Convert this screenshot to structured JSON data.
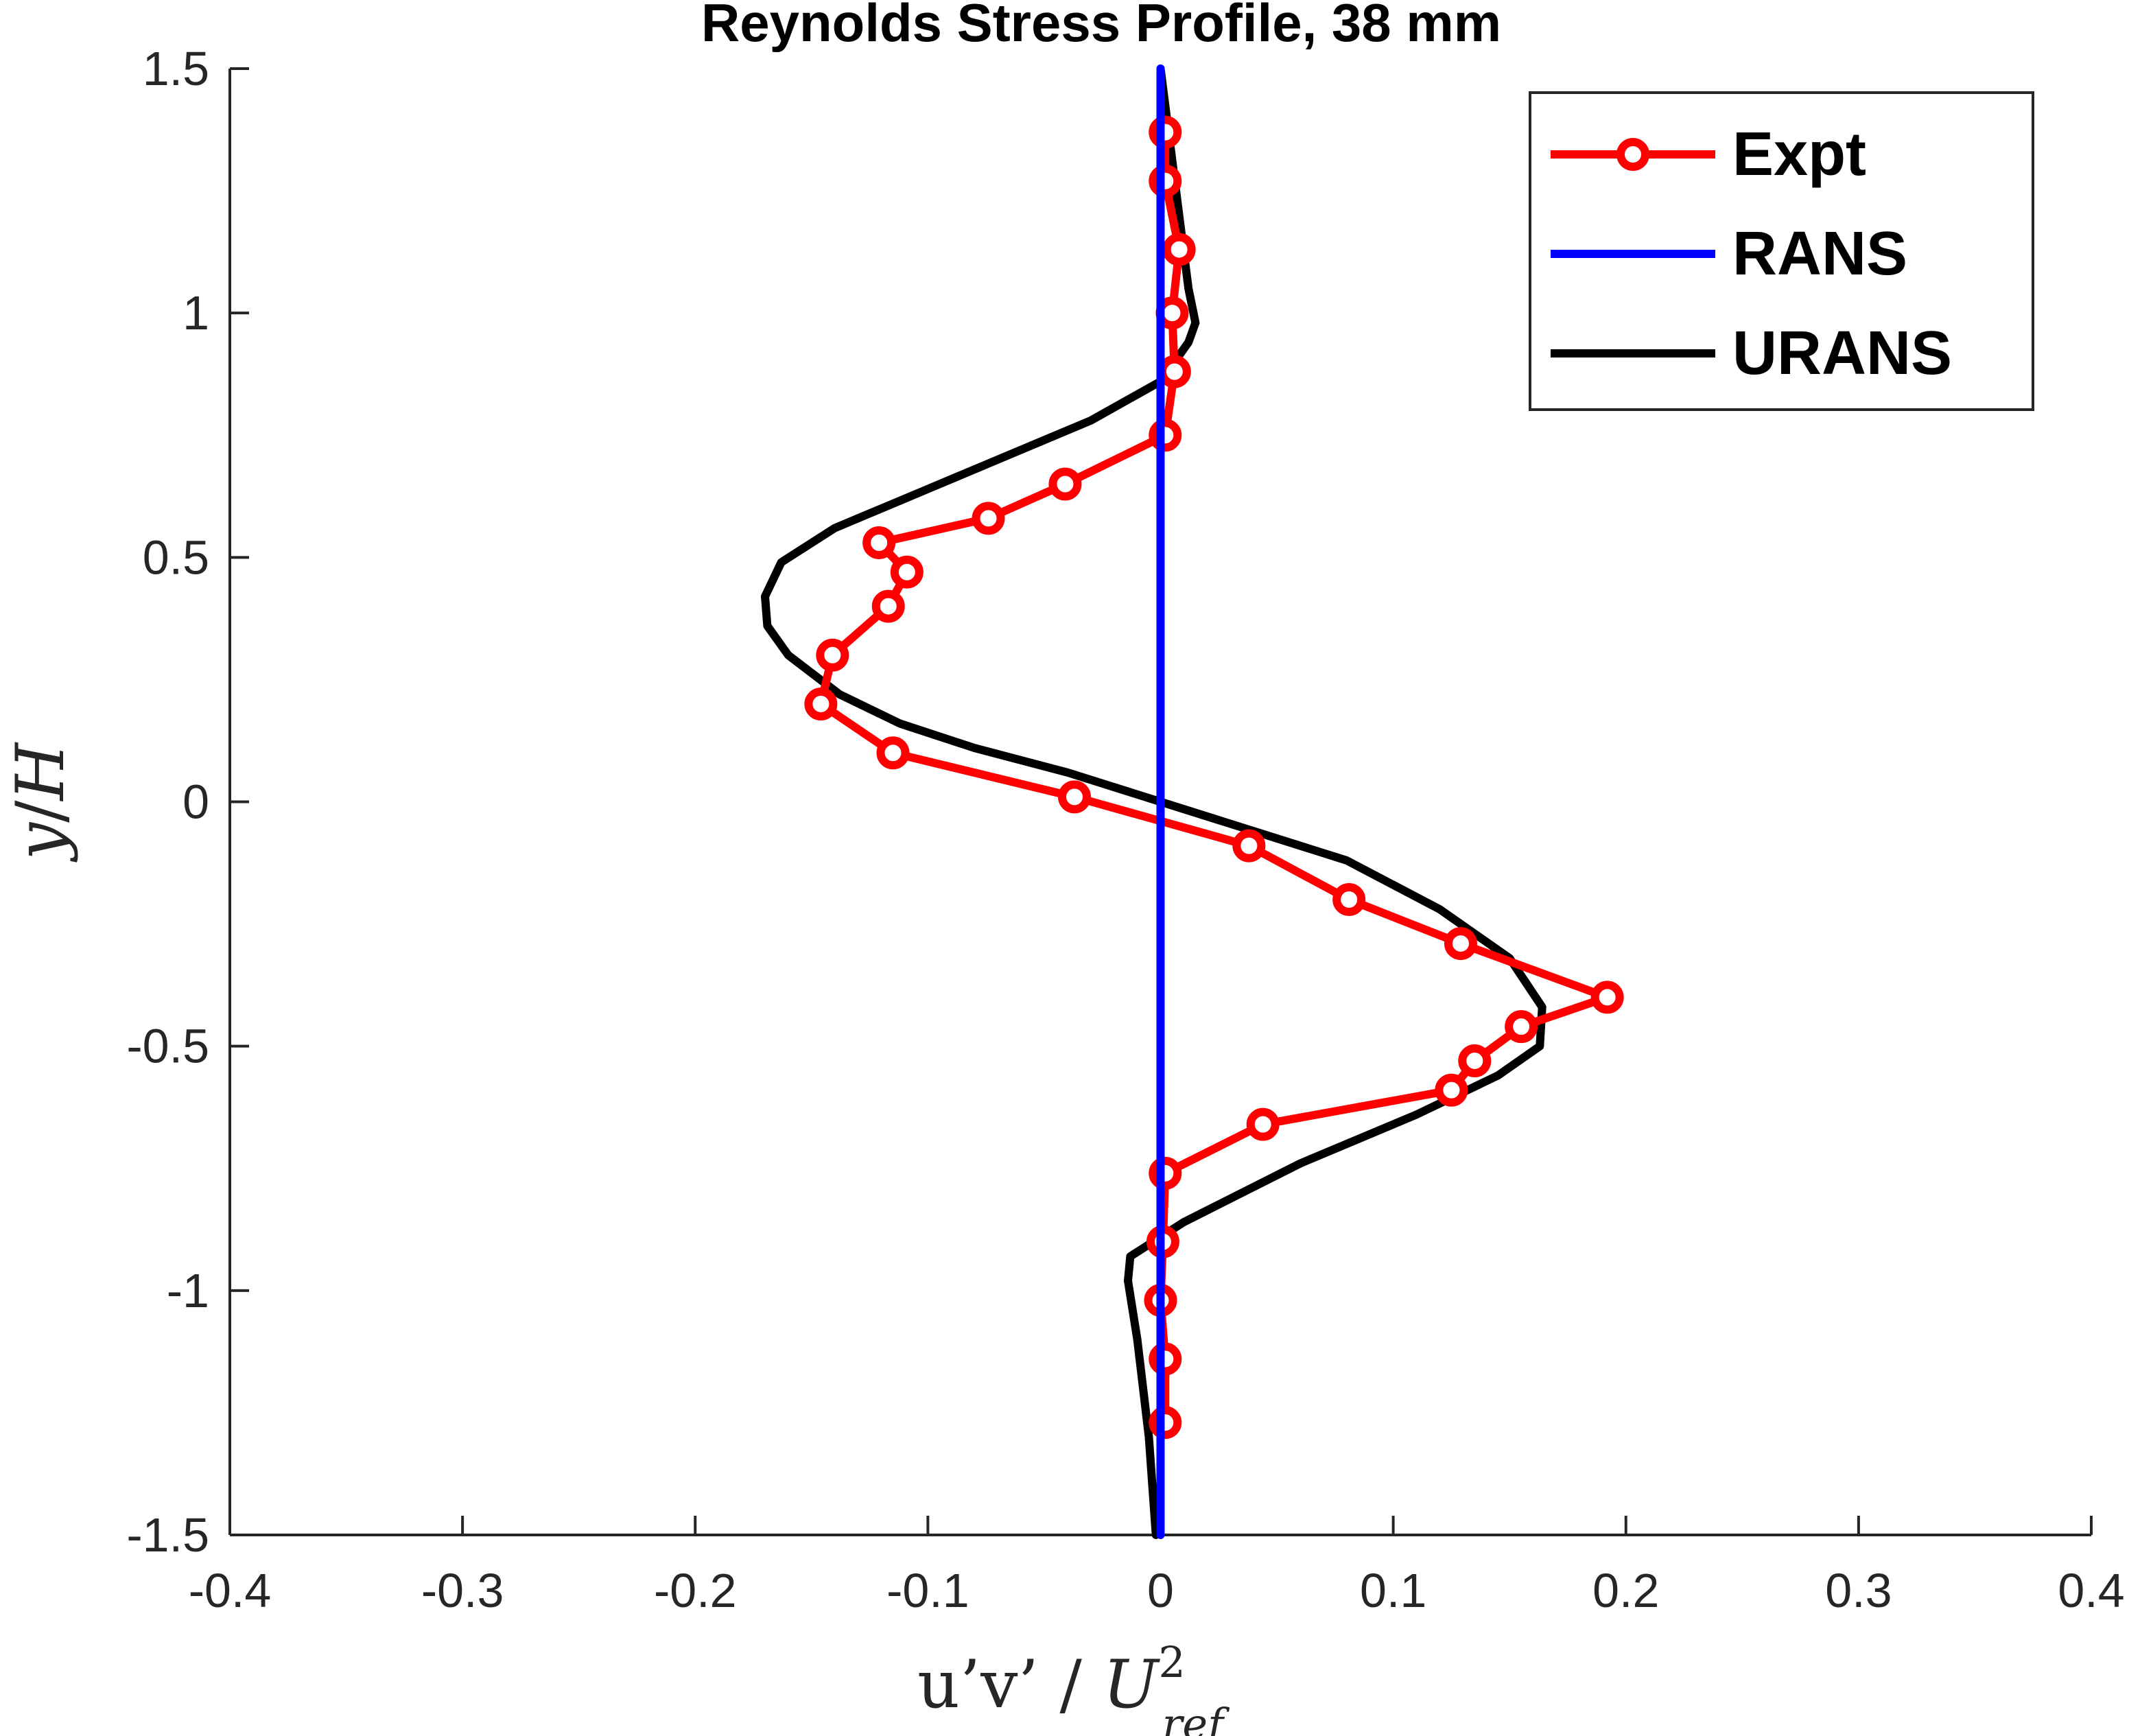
{
  "chart_data": {
    "type": "line",
    "title": "Reynolds Stress Profile, 38 mm",
    "xlabel": {
      "text": "u’v’ / ",
      "math_base": "U",
      "math_sup": "2",
      "math_sub": "ref"
    },
    "ylabel": {
      "math_y": "y",
      "slash": "/",
      "math_H": "H"
    },
    "xlim": [
      -0.4,
      0.4
    ],
    "ylim": [
      -1.5,
      1.5
    ],
    "xticks": [
      -0.4,
      -0.3,
      -0.2,
      -0.1,
      0,
      0.1,
      0.2,
      0.3,
      0.4
    ],
    "yticks": [
      -1.5,
      -1,
      -0.5,
      0,
      0.5,
      1,
      1.5
    ],
    "xtick_labels": [
      "-0.4",
      "-0.3",
      "-0.2",
      "-0.1",
      "0",
      "0.1",
      "0.2",
      "0.3",
      "0.4"
    ],
    "ytick_labels": [
      "-1.5",
      "-1",
      "-0.5",
      "0",
      "0.5",
      "1",
      "1.5"
    ],
    "grid": false,
    "legend_position": "top-right",
    "series": [
      {
        "name": "Expt",
        "color": "#ff0000",
        "marker": "circle",
        "points": [
          [
            0.002,
            1.37
          ],
          [
            0.002,
            1.27
          ],
          [
            0.008,
            1.13
          ],
          [
            0.005,
            1.0
          ],
          [
            0.006,
            0.88
          ],
          [
            0.002,
            0.75
          ],
          [
            -0.041,
            0.65
          ],
          [
            -0.074,
            0.58
          ],
          [
            -0.121,
            0.53
          ],
          [
            -0.109,
            0.47
          ],
          [
            -0.117,
            0.4
          ],
          [
            -0.141,
            0.3
          ],
          [
            -0.146,
            0.2
          ],
          [
            -0.115,
            0.1
          ],
          [
            -0.037,
            0.01
          ],
          [
            0.038,
            -0.09
          ],
          [
            0.081,
            -0.2
          ],
          [
            0.129,
            -0.29
          ],
          [
            0.192,
            -0.4
          ],
          [
            0.155,
            -0.46
          ],
          [
            0.135,
            -0.53
          ],
          [
            0.125,
            -0.59
          ],
          [
            0.044,
            -0.66
          ],
          [
            0.002,
            -0.76
          ],
          [
            0.001,
            -0.9
          ],
          [
            0.0,
            -1.02
          ],
          [
            0.002,
            -1.14
          ],
          [
            0.002,
            -1.27
          ]
        ]
      },
      {
        "name": "RANS",
        "color": "#0000ff",
        "marker": "none",
        "points": [
          [
            0.0,
            1.5
          ],
          [
            0.0,
            -1.5
          ]
        ]
      },
      {
        "name": "URANS",
        "color": "#000000",
        "marker": "none",
        "points": [
          [
            0.0,
            1.5
          ],
          [
            0.004,
            1.35
          ],
          [
            0.008,
            1.2
          ],
          [
            0.012,
            1.05
          ],
          [
            0.015,
            0.98
          ],
          [
            0.012,
            0.94
          ],
          [
            0.0,
            0.86
          ],
          [
            -0.03,
            0.78
          ],
          [
            -0.06,
            0.72
          ],
          [
            -0.1,
            0.64
          ],
          [
            -0.14,
            0.56
          ],
          [
            -0.163,
            0.49
          ],
          [
            -0.17,
            0.42
          ],
          [
            -0.169,
            0.36
          ],
          [
            -0.16,
            0.3
          ],
          [
            -0.138,
            0.22
          ],
          [
            -0.112,
            0.16
          ],
          [
            -0.08,
            0.11
          ],
          [
            -0.04,
            0.06
          ],
          [
            0.0,
            0.0
          ],
          [
            0.04,
            -0.06
          ],
          [
            0.08,
            -0.12
          ],
          [
            0.12,
            -0.22
          ],
          [
            0.15,
            -0.32
          ],
          [
            0.164,
            -0.42
          ],
          [
            0.163,
            -0.5
          ],
          [
            0.145,
            -0.56
          ],
          [
            0.11,
            -0.64
          ],
          [
            0.06,
            -0.74
          ],
          [
            0.01,
            -0.86
          ],
          [
            -0.013,
            -0.93
          ],
          [
            -0.014,
            -0.98
          ],
          [
            -0.01,
            -1.1
          ],
          [
            -0.005,
            -1.3
          ],
          [
            -0.002,
            -1.5
          ]
        ]
      }
    ]
  }
}
